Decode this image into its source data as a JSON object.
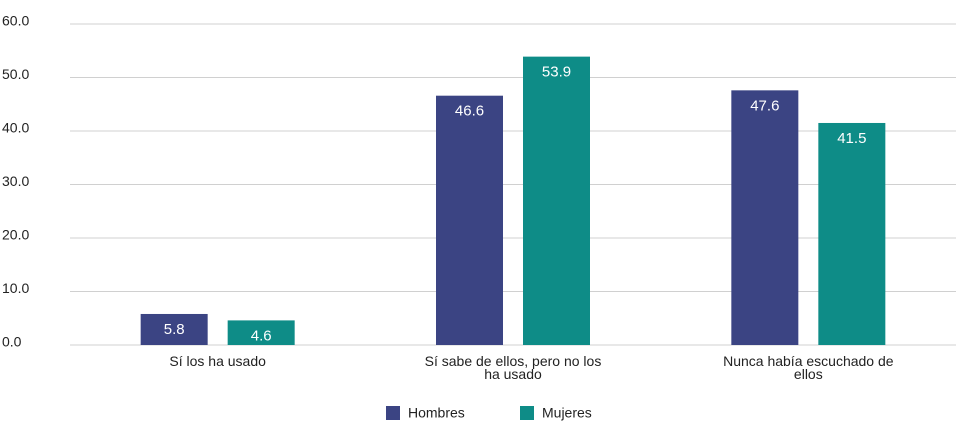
{
  "chart_data": {
    "type": "bar",
    "categories": [
      "Sí los ha usado",
      "Sí sabe de ellos, pero no los ha usado",
      "Nunca había escuchado de ellos"
    ],
    "series": [
      {
        "name": "Hombres",
        "color": "#3b4483",
        "values": [
          5.8,
          46.6,
          47.6
        ]
      },
      {
        "name": "Mujeres",
        "color": "#0e8c87",
        "values": [
          4.6,
          53.9,
          41.5
        ]
      }
    ],
    "ylim": [
      0,
      60
    ],
    "yticks": [
      {
        "value": 0,
        "label": "0.0"
      },
      {
        "value": 10,
        "label": "10.0"
      },
      {
        "value": 20,
        "label": "20.0"
      },
      {
        "value": 30,
        "label": "30.0"
      },
      {
        "value": 40,
        "label": "40.0"
      },
      {
        "value": 50,
        "label": "50.0"
      },
      {
        "value": 60,
        "label": "60.0"
      }
    ],
    "grid": true,
    "legend": "bottom"
  }
}
